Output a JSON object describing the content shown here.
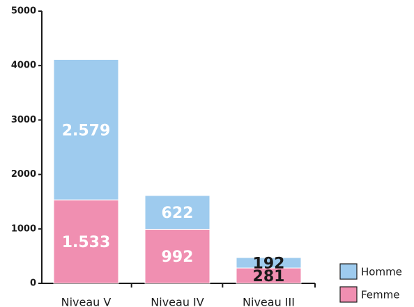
{
  "chart_data": {
    "type": "bar",
    "stacked": true,
    "categories": [
      "Niveau V",
      "Niveau IV",
      "Niveau III"
    ],
    "series": [
      {
        "name": "Femme",
        "color": "#f08fb1",
        "values": [
          1533,
          992,
          281
        ],
        "value_labels": [
          "1.533",
          "992",
          "281"
        ]
      },
      {
        "name": "Homme",
        "color": "#9ecbee",
        "values": [
          2579,
          622,
          192
        ],
        "value_labels": [
          "2.579",
          "622",
          "192"
        ]
      }
    ],
    "ylim": [
      0,
      5000
    ],
    "yticks": [
      0,
      1000,
      2000,
      3000,
      4000,
      5000
    ],
    "grid": false,
    "legend": "lower right"
  }
}
